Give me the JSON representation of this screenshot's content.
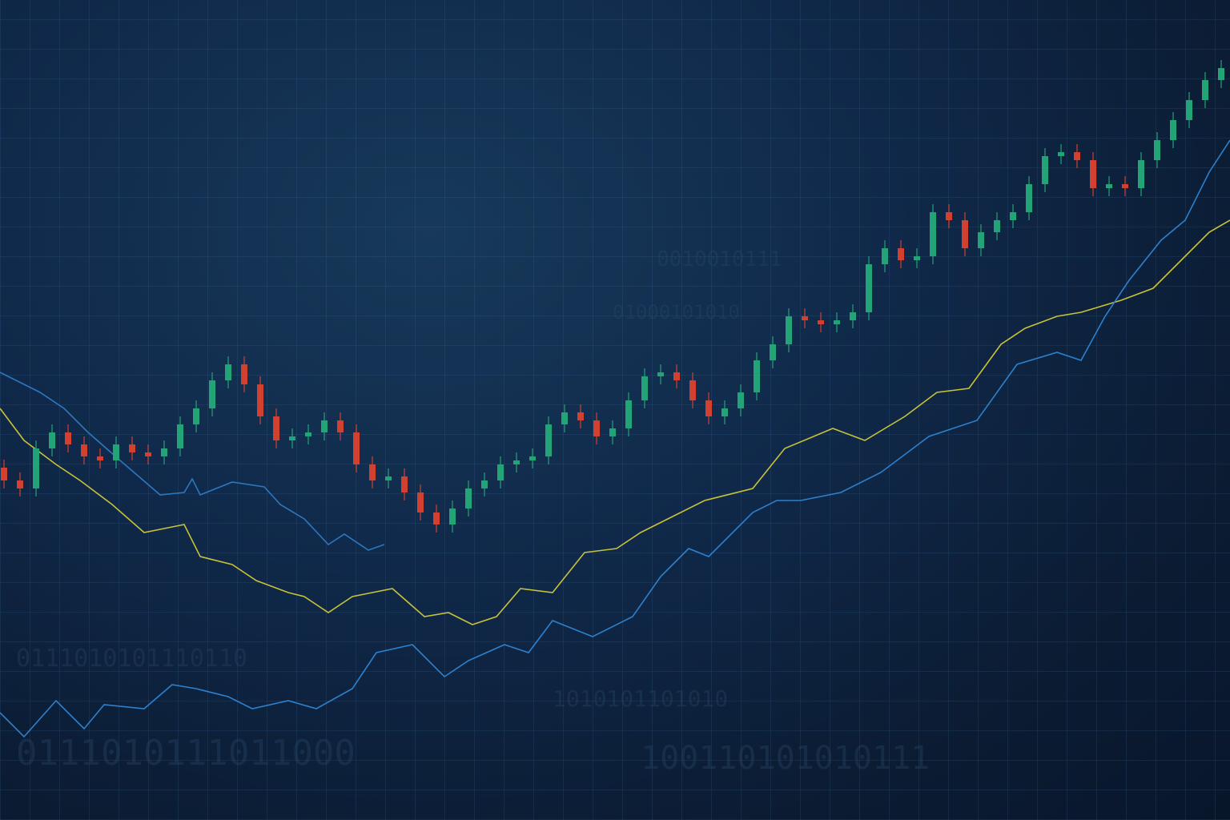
{
  "chart_data": {
    "type": "candlestick",
    "xlim": [
      -0.25,
      76.55
    ],
    "ylim": [
      0,
      102.4
    ],
    "up_color": "#23a477",
    "down_color": "#d2412f",
    "x": [
      0,
      1,
      2,
      3,
      4,
      5,
      6,
      7,
      8,
      9,
      10,
      11,
      12,
      13,
      14,
      15,
      16,
      17,
      18,
      19,
      20,
      21,
      22,
      23,
      24,
      25,
      26,
      27,
      28,
      29,
      30,
      31,
      32,
      33,
      34,
      35,
      36,
      37,
      38,
      39,
      40,
      41,
      42,
      43,
      44,
      45,
      46,
      47,
      48,
      49,
      50,
      51,
      52,
      53,
      54,
      55,
      56,
      57,
      58,
      59,
      60,
      61,
      62,
      63,
      64,
      65,
      66,
      67,
      68,
      69,
      70,
      71,
      72,
      73,
      74,
      75,
      76
    ],
    "open": [
      44.0,
      42.4,
      41.4,
      46.4,
      48.4,
      46.9,
      45.4,
      44.9,
      46.9,
      45.9,
      45.4,
      46.4,
      49.4,
      51.4,
      54.9,
      56.9,
      54.4,
      50.4,
      47.4,
      47.9,
      48.4,
      49.9,
      48.4,
      44.4,
      42.4,
      42.9,
      40.9,
      38.4,
      36.9,
      38.9,
      41.4,
      42.4,
      44.4,
      44.9,
      45.4,
      49.4,
      50.9,
      49.9,
      47.9,
      48.9,
      52.4,
      55.4,
      55.9,
      54.9,
      52.4,
      50.4,
      51.4,
      53.4,
      57.4,
      59.4,
      62.9,
      62.4,
      61.9,
      62.4,
      63.4,
      69.4,
      71.4,
      69.9,
      70.4,
      75.9,
      74.9,
      71.4,
      73.4,
      74.9,
      75.9,
      79.4,
      82.9,
      83.4,
      82.4,
      78.9,
      79.4,
      78.9,
      82.4,
      84.9,
      87.4,
      89.9,
      92.4
    ],
    "high": [
      45.0,
      43.4,
      47.4,
      49.4,
      49.4,
      47.9,
      46.4,
      47.9,
      47.9,
      46.9,
      47.4,
      50.4,
      52.4,
      55.9,
      57.9,
      57.9,
      55.4,
      51.4,
      48.9,
      49.4,
      50.9,
      50.9,
      49.4,
      45.4,
      43.9,
      43.9,
      41.9,
      39.4,
      39.9,
      42.4,
      43.4,
      45.4,
      45.9,
      46.4,
      50.4,
      51.9,
      51.9,
      50.9,
      49.9,
      53.4,
      56.4,
      56.9,
      56.9,
      55.9,
      53.4,
      52.4,
      54.4,
      58.4,
      60.4,
      63.9,
      63.9,
      63.4,
      63.4,
      64.4,
      70.4,
      72.4,
      72.4,
      71.4,
      76.9,
      76.9,
      75.9,
      74.4,
      75.9,
      76.9,
      80.4,
      83.9,
      84.4,
      84.4,
      83.4,
      80.4,
      80.4,
      83.4,
      85.9,
      88.4,
      90.9,
      93.4,
      94.9
    ],
    "low": [
      41.4,
      40.4,
      40.4,
      45.4,
      45.9,
      44.4,
      43.9,
      43.9,
      44.9,
      44.4,
      44.4,
      45.4,
      48.4,
      50.4,
      53.9,
      53.4,
      49.4,
      46.4,
      46.4,
      46.9,
      47.4,
      47.4,
      43.4,
      41.4,
      41.4,
      39.9,
      37.4,
      35.9,
      35.9,
      37.9,
      40.4,
      41.4,
      43.4,
      43.9,
      44.4,
      48.4,
      48.9,
      46.9,
      46.9,
      47.9,
      51.4,
      54.4,
      53.9,
      51.4,
      49.4,
      49.4,
      50.4,
      52.4,
      56.4,
      58.4,
      61.4,
      60.9,
      60.9,
      61.4,
      62.4,
      68.4,
      68.9,
      68.9,
      69.4,
      73.9,
      70.4,
      70.4,
      72.4,
      73.9,
      74.9,
      78.4,
      81.9,
      81.4,
      77.9,
      77.9,
      77.9,
      77.9,
      81.4,
      83.9,
      86.4,
      88.9,
      91.4
    ],
    "close": [
      42.4,
      41.4,
      46.4,
      48.4,
      46.9,
      45.4,
      44.9,
      46.9,
      45.9,
      45.4,
      46.4,
      49.4,
      51.4,
      54.9,
      56.9,
      54.4,
      50.4,
      47.4,
      47.9,
      48.4,
      49.9,
      48.4,
      44.4,
      42.4,
      42.9,
      40.9,
      38.4,
      36.9,
      38.9,
      41.4,
      42.4,
      44.4,
      44.9,
      45.4,
      49.4,
      50.9,
      49.9,
      47.9,
      48.9,
      52.4,
      55.4,
      55.9,
      54.9,
      52.4,
      50.4,
      51.4,
      53.4,
      57.4,
      59.4,
      62.9,
      62.4,
      61.9,
      62.4,
      63.4,
      69.4,
      71.4,
      69.9,
      70.4,
      75.9,
      74.9,
      71.4,
      73.4,
      74.9,
      75.9,
      79.4,
      82.9,
      83.4,
      82.4,
      78.9,
      79.4,
      78.9,
      82.4,
      84.9,
      87.4,
      89.9,
      92.4,
      93.9
    ],
    "series": [
      {
        "type": "line",
        "color": "#2d77c0",
        "x": [
          -0.25,
          2.25,
          3.75,
          5.25,
          7.25,
          9.75,
          11.25,
          11.75,
          12.25,
          14.25,
          16.25,
          17.25,
          18.75,
          20.25,
          21.25,
          22.75,
          23.75
        ],
        "values": [
          55.9,
          53.4,
          51.4,
          48.4,
          44.9,
          40.6,
          40.9,
          42.6,
          40.6,
          42.2,
          41.6,
          39.4,
          37.6,
          34.4,
          35.7,
          33.7,
          34.4
        ]
      },
      {
        "type": "line",
        "color": "#c8c23a",
        "x": [
          -0.25,
          1.25,
          3.25,
          4.75,
          6.75,
          8.75,
          11.25,
          12.25,
          14.25,
          15.75,
          17.75,
          18.75,
          20.25,
          21.75,
          24.25,
          26.25,
          27.75,
          29.25,
          30.75,
          32.25,
          34.25,
          36.25,
          38.25,
          39.75,
          41.75,
          43.75,
          46.75,
          48.75,
          51.75,
          53.75,
          56.25,
          58.25,
          60.25,
          62.25,
          63.75,
          65.75,
          67.25,
          69.75,
          71.75,
          73.75,
          75.25,
          76.55
        ],
        "values": [
          51.4,
          47.4,
          44.4,
          42.4,
          39.4,
          35.9,
          36.9,
          32.9,
          31.9,
          29.9,
          28.4,
          27.9,
          25.9,
          27.9,
          28.9,
          25.4,
          25.9,
          24.4,
          25.4,
          28.9,
          28.4,
          33.4,
          33.9,
          35.9,
          37.9,
          39.9,
          41.4,
          46.4,
          48.9,
          47.4,
          50.4,
          53.4,
          53.9,
          59.4,
          61.4,
          62.9,
          63.4,
          64.9,
          66.4,
          70.4,
          73.4,
          74.9
        ]
      },
      {
        "type": "line",
        "color": "#2e80cc",
        "x": [
          -0.25,
          1.25,
          3.25,
          5.0,
          6.25,
          8.75,
          10.5,
          12.0,
          14.0,
          15.5,
          17.75,
          19.5,
          21.75,
          23.25,
          25.5,
          27.5,
          29.0,
          31.25,
          32.75,
          34.25,
          36.75,
          39.25,
          41.0,
          42.75,
          44.0,
          46.75,
          48.25,
          49.75,
          52.25,
          54.75,
          57.75,
          60.75,
          63.25,
          65.75,
          67.25,
          68.75,
          70.25,
          72.25,
          73.75,
          75.25,
          76.55
        ],
        "values": [
          13.4,
          10.4,
          14.9,
          11.4,
          14.4,
          13.9,
          16.9,
          16.4,
          15.4,
          13.9,
          14.9,
          13.9,
          16.4,
          20.9,
          21.9,
          17.9,
          19.9,
          21.9,
          20.9,
          24.9,
          22.9,
          25.4,
          30.4,
          33.9,
          32.9,
          38.4,
          39.9,
          39.9,
          40.9,
          43.4,
          47.9,
          49.9,
          56.9,
          58.4,
          57.4,
          62.9,
          67.4,
          72.4,
          74.9,
          80.9,
          84.9
        ]
      }
    ],
    "annotations": [
      "0111010111011000",
      "100110101010111",
      "1010101101010",
      "0111010101110110",
      "01000101010",
      "0010010111"
    ]
  }
}
